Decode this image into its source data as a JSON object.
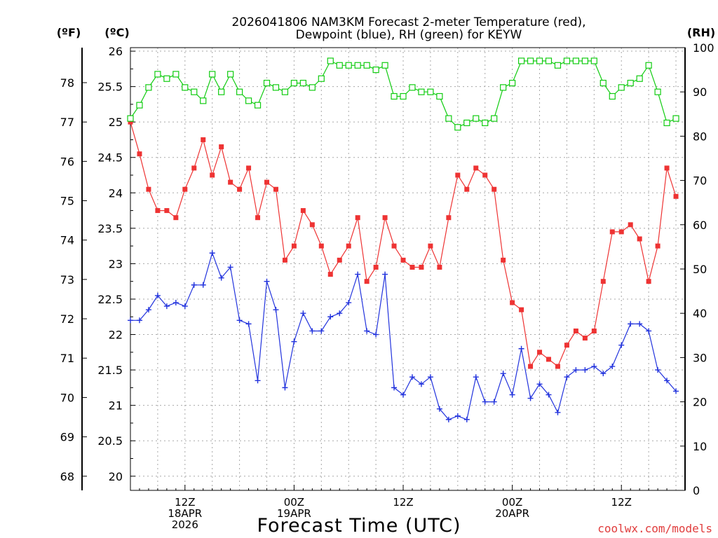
{
  "chart_data": {
    "type": "line",
    "title_line1": "2026041806 NAM3KM Forecast 2-meter Temperature (red),",
    "title_line2": "Dewpoint (blue), RH (green) for KEYW",
    "xlabel": "Forecast Time (UTC)",
    "credit": "coolwx.com/models",
    "units": {
      "fahrenheit": "(ºF)",
      "celsius": "(ºC)",
      "rh": "(RH)"
    },
    "colors": {
      "temperature": "#ee3333",
      "dewpoint": "#2233dd",
      "rh": "#11cc11"
    },
    "grid": true,
    "x_hours_range": [
      0,
      61
    ],
    "x_ticks": [
      {
        "hour": 6,
        "labels": [
          "12Z",
          "18APR",
          "2026"
        ]
      },
      {
        "hour": 18,
        "labels": [
          "00Z",
          "19APR"
        ]
      },
      {
        "hour": 30,
        "labels": [
          "12Z"
        ]
      },
      {
        "hour": 42,
        "labels": [
          "00Z",
          "20APR"
        ]
      },
      {
        "hour": 54,
        "labels": [
          "12Z"
        ]
      }
    ],
    "celsius_axis": {
      "range": [
        19.8,
        26.05
      ],
      "ticks": [
        "20",
        "20.5",
        "21",
        "21.5",
        "22",
        "22.5",
        "23",
        "23.5",
        "24",
        "24.5",
        "25",
        "25.5",
        "26"
      ]
    },
    "fahrenheit_axis": {
      "ticks": [
        "68",
        "69",
        "70",
        "71",
        "72",
        "73",
        "74",
        "75",
        "76",
        "77",
        "78"
      ]
    },
    "rh_axis": {
      "range": [
        0,
        100
      ],
      "ticks": [
        "0",
        "10",
        "20",
        "30",
        "40",
        "50",
        "60",
        "70",
        "80",
        "90",
        "100"
      ]
    },
    "series": [
      {
        "key": "temperature",
        "marker": "filled-square",
        "values": [
          25.0,
          24.55,
          24.05,
          23.75,
          23.75,
          23.65,
          24.05,
          24.35,
          24.75,
          24.25,
          24.65,
          24.15,
          24.05,
          24.35,
          23.65,
          24.15,
          24.05,
          23.05,
          23.25,
          23.75,
          23.55,
          23.25,
          22.85,
          23.05,
          23.25,
          23.65,
          22.75,
          22.95,
          23.65,
          23.25,
          23.05,
          22.95,
          22.95,
          23.25,
          22.95,
          23.65,
          24.25,
          24.05,
          24.35,
          24.25,
          24.05,
          23.05,
          22.45,
          22.35,
          21.55,
          21.75,
          21.65,
          21.55,
          21.85,
          22.05,
          21.95,
          22.05,
          22.75,
          23.45,
          23.45,
          23.55,
          23.35,
          22.75,
          23.25,
          24.35,
          23.95
        ]
      },
      {
        "key": "dewpoint",
        "marker": "plus",
        "values": [
          22.2,
          22.2,
          22.35,
          22.55,
          22.4,
          22.45,
          22.4,
          22.7,
          22.7,
          23.15,
          22.8,
          22.95,
          22.2,
          22.15,
          21.35,
          22.75,
          22.35,
          21.25,
          21.9,
          22.3,
          22.05,
          22.05,
          22.25,
          22.3,
          22.45,
          22.85,
          22.05,
          22.0,
          22.85,
          21.25,
          21.15,
          21.4,
          21.3,
          21.4,
          20.95,
          20.8,
          20.85,
          20.8,
          21.4,
          21.05,
          21.05,
          21.45,
          21.15,
          21.8,
          21.1,
          21.3,
          21.15,
          20.9,
          21.4,
          21.5,
          21.5,
          21.55,
          21.45,
          21.55,
          21.85,
          22.15,
          22.15,
          22.05,
          21.5,
          21.35,
          21.2
        ]
      },
      {
        "key": "rh",
        "marker": "open-square",
        "values": [
          84,
          87,
          91,
          94,
          93,
          94,
          91,
          90,
          88,
          94,
          90,
          94,
          90,
          88,
          87,
          92,
          91,
          90,
          92,
          92,
          91,
          93,
          97,
          96,
          96,
          96,
          96,
          95,
          96,
          89,
          89,
          91,
          90,
          90,
          89,
          84,
          82,
          83,
          84,
          83,
          84,
          91,
          92,
          97,
          97,
          97,
          97,
          96,
          97,
          97,
          97,
          97,
          92,
          89,
          91,
          92,
          93,
          96,
          90,
          83,
          84
        ]
      }
    ]
  }
}
